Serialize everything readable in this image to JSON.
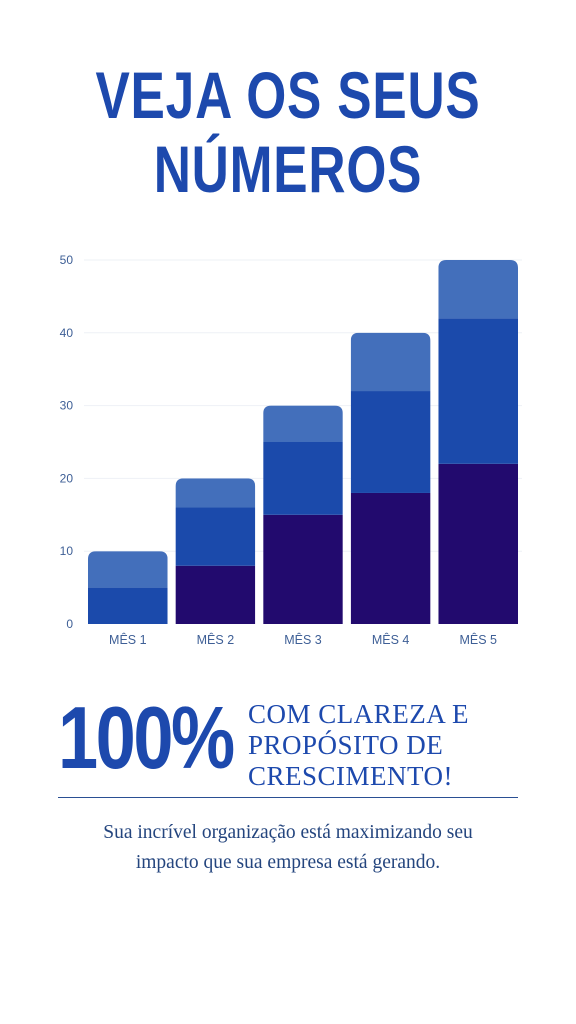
{
  "headline": {
    "line1": "VEJA OS SEUS",
    "line2": "NÚMEROS"
  },
  "chart_data": {
    "type": "bar",
    "stacked": true,
    "categories": [
      "MÊS 1",
      "MÊS 2",
      "MÊS 3",
      "MÊS 4",
      "MÊS 5"
    ],
    "series": [
      {
        "color": "#220a6e",
        "values": [
          0,
          8,
          15,
          18,
          22
        ]
      },
      {
        "color": "#1b4aab",
        "values": [
          5,
          8,
          10,
          14,
          20
        ]
      },
      {
        "color": "#436fbb",
        "values": [
          5,
          4,
          5,
          8,
          8
        ]
      }
    ],
    "yticks": [
      0,
      10,
      20,
      30,
      40,
      50
    ],
    "ylim": [
      0,
      50
    ],
    "grid": true,
    "title": "",
    "xlabel": "",
    "ylabel": ""
  },
  "stat": {
    "value": "100%",
    "line1": "COM CLAREZA E",
    "line2": "PROPÓSITO DE",
    "line3": "CRESCIMENTO!"
  },
  "body": {
    "line1": "Sua incrível organização está maximizando seu",
    "line2": "impacto que sua empresa está gerando."
  },
  "colors": {
    "accent": "#1d49ad",
    "text": "#24457e",
    "axis_text": "#3e5f96"
  }
}
